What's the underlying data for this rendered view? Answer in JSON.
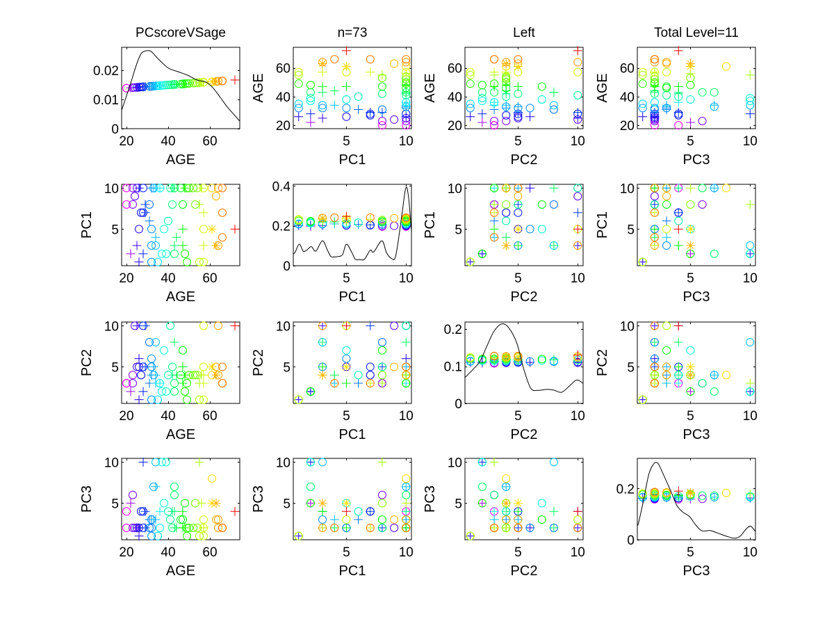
{
  "figure": {
    "background": "#ffffff",
    "axes_color": "#000000",
    "curve_color": "#000000"
  },
  "chart_data": {
    "type": "scatter",
    "subtype": "scatter-plot matrix (4x4) with kernel-density curves on the diagonal",
    "n": 73,
    "variables": [
      "AGE",
      "PC1",
      "PC2",
      "PC3"
    ],
    "titles": [
      "PCscoreVSage",
      "n=73",
      "Left",
      "Total Level=11"
    ],
    "axes": {
      "AGE": {
        "label": "AGE",
        "lim": [
          17.66,
          74.34
        ],
        "ticks": [
          20,
          40,
          60
        ],
        "tick_labels": [
          "20",
          "40",
          "60"
        ]
      },
      "PC1": {
        "label": "PC1",
        "lim": [
          0.55,
          10.45
        ],
        "ticks": [
          5,
          10
        ],
        "tick_labels": [
          "5",
          "10"
        ]
      },
      "PC2": {
        "label": "PC2",
        "lim": [
          0.55,
          10.45
        ],
        "ticks": [
          5,
          10
        ],
        "tick_labels": [
          "5",
          "10"
        ]
      },
      "PC3": {
        "label": "PC3",
        "lim": [
          0.55,
          10.45
        ],
        "ticks": [
          5,
          10
        ],
        "tick_labels": [
          "5",
          "10"
        ]
      }
    },
    "grid": false,
    "legend": "none",
    "color_map": {
      "by": "AGE",
      "scheme": "hsv-reversed",
      "hue_at_min": 300,
      "hue_at_max": 0,
      "min": 20,
      "max": 72,
      "gamma": 0.8
    },
    "markers": {
      "o": "circle",
      "+": "plus",
      "*": "star"
    },
    "subject_fields": [
      "AGE",
      "PC1",
      "PC2",
      "PC3",
      "marker"
    ],
    "subjects": [
      [
        20,
        8,
        3,
        2,
        "o"
      ],
      [
        20,
        10,
        3,
        4,
        "o"
      ],
      [
        22,
        2,
        2,
        5,
        "+"
      ],
      [
        23,
        8,
        3,
        6,
        "o"
      ],
      [
        23,
        10,
        4,
        2,
        "o"
      ],
      [
        24,
        9,
        10,
        2,
        "o"
      ],
      [
        25,
        3,
        10,
        2,
        "+"
      ],
      [
        25,
        10,
        5,
        2,
        "o"
      ],
      [
        26,
        1,
        1,
        1,
        "+"
      ],
      [
        26,
        5,
        5,
        2,
        "o"
      ],
      [
        26,
        10,
        6,
        2,
        "+"
      ],
      [
        27,
        7,
        4,
        4,
        "o"
      ],
      [
        28,
        10,
        10,
        2,
        "o"
      ],
      [
        28,
        2,
        2,
        10,
        "+"
      ],
      [
        28,
        7,
        5,
        4,
        "o"
      ],
      [
        29,
        7,
        10,
        4,
        "+"
      ],
      [
        29,
        8,
        5,
        2,
        "+"
      ],
      [
        31,
        8,
        8,
        2,
        "o"
      ],
      [
        31,
        6,
        3,
        3,
        "+"
      ],
      [
        32,
        1,
        1,
        1,
        "o"
      ],
      [
        32,
        10,
        4,
        3,
        "+"
      ],
      [
        32,
        3,
        5,
        3,
        "o"
      ],
      [
        32,
        5,
        6,
        2,
        "o"
      ],
      [
        33,
        10,
        4,
        7,
        "o"
      ],
      [
        33,
        10,
        5,
        3,
        "+"
      ],
      [
        34,
        3,
        8,
        10,
        "o"
      ],
      [
        34,
        10,
        4,
        7,
        "+"
      ],
      [
        34,
        4,
        3,
        3,
        "+"
      ],
      [
        35,
        1,
        1,
        1,
        "o"
      ],
      [
        36,
        10,
        3,
        4,
        "+"
      ],
      [
        36,
        10,
        3,
        2,
        "o"
      ],
      [
        37,
        2,
        2,
        10,
        "o"
      ],
      [
        38,
        5,
        7,
        5,
        "o"
      ],
      [
        39,
        2,
        2,
        10,
        "o"
      ],
      [
        40,
        6,
        4,
        4,
        "o"
      ],
      [
        41,
        10,
        10,
        3,
        "o"
      ],
      [
        42,
        10,
        4,
        4,
        "+"
      ],
      [
        42,
        8,
        5,
        2,
        "o"
      ],
      [
        43,
        2,
        2,
        7,
        "o"
      ],
      [
        43,
        3,
        8,
        4,
        "+"
      ],
      [
        43,
        10,
        3,
        6,
        "o"
      ],
      [
        43,
        10,
        8,
        2,
        "+"
      ],
      [
        44,
        4,
        4,
        2,
        "+"
      ],
      [
        46,
        10,
        4,
        3,
        "o"
      ],
      [
        47,
        8,
        7,
        3,
        "o"
      ],
      [
        47,
        3,
        5,
        4,
        "+"
      ],
      [
        47,
        5,
        3,
        2,
        "+"
      ],
      [
        48,
        2,
        2,
        5,
        "o"
      ],
      [
        48,
        10,
        4,
        2,
        "+"
      ],
      [
        49,
        1,
        1,
        1,
        "o"
      ],
      [
        49,
        10,
        3,
        2,
        "o"
      ],
      [
        50,
        10,
        4,
        2,
        "o"
      ],
      [
        52,
        10,
        4,
        2,
        "o"
      ],
      [
        53,
        8,
        4,
        5,
        "o"
      ],
      [
        54,
        10,
        4,
        2,
        "o"
      ],
      [
        55,
        1,
        1,
        1,
        "o"
      ],
      [
        55,
        8,
        3,
        10,
        "+"
      ],
      [
        56,
        10,
        4,
        5,
        "+"
      ],
      [
        57,
        1,
        1,
        1,
        "o"
      ],
      [
        57,
        3,
        4,
        2,
        "+"
      ],
      [
        57,
        5,
        10,
        3,
        "o"
      ],
      [
        57,
        10,
        5,
        2,
        "o"
      ],
      [
        57,
        7,
        3,
        2,
        "+"
      ],
      [
        61,
        5,
        5,
        5,
        "*"
      ],
      [
        61,
        10,
        4,
        8,
        "o"
      ],
      [
        63,
        9,
        5,
        3,
        "o"
      ],
      [
        63,
        3,
        4,
        5,
        "*"
      ],
      [
        64,
        10,
        4,
        3,
        "o"
      ],
      [
        64,
        3,
        10,
        2,
        "o"
      ],
      [
        66,
        4,
        3,
        2,
        "o"
      ],
      [
        66,
        7,
        3,
        2,
        "o"
      ],
      [
        66,
        10,
        5,
        2,
        "o"
      ],
      [
        72,
        5,
        10,
        4,
        "+"
      ]
    ],
    "diagonals": [
      {
        "variable": "AGE",
        "ylim": [
          0,
          0.0279
        ],
        "yticks": [
          0,
          0.01,
          0.02
        ],
        "ytick_labels": [
          "0",
          "0.01",
          "0.02"
        ],
        "marker_y_range": [
          0.0139,
          0.0167
        ],
        "density": [
          [
            17.7,
            0.0064
          ],
          [
            21.6,
            0.0147
          ],
          [
            24.9,
            0.0222
          ],
          [
            27.1,
            0.0258
          ],
          [
            29.4,
            0.0267
          ],
          [
            31.6,
            0.0266
          ],
          [
            33.8,
            0.025
          ],
          [
            37.1,
            0.0226
          ],
          [
            40.5,
            0.0206
          ],
          [
            44.9,
            0.0195
          ],
          [
            49.4,
            0.0183
          ],
          [
            53.8,
            0.0167
          ],
          [
            58.3,
            0.0159
          ],
          [
            61.6,
            0.0139
          ],
          [
            65.0,
            0.0107
          ],
          [
            68.3,
            0.0075
          ],
          [
            71.6,
            0.0048
          ],
          [
            74.3,
            0.0026
          ]
        ]
      },
      {
        "variable": "PC1",
        "ylim": [
          0,
          0.408
        ],
        "yticks": [
          0,
          0.2,
          0.4
        ],
        "ytick_labels": [
          "0",
          "0.2",
          "0.4"
        ],
        "marker_y_range": [
          0.196,
          0.247
        ],
        "density": [
          [
            0.55,
            0.058
          ],
          [
            0.7,
            0.067
          ],
          [
            1.05,
            0.108
          ],
          [
            1.38,
            0.073
          ],
          [
            1.67,
            0.078
          ],
          [
            2.06,
            0.096
          ],
          [
            2.44,
            0.073
          ],
          [
            2.99,
            0.125
          ],
          [
            3.41,
            0.078
          ],
          [
            3.7,
            0.046
          ],
          [
            4.0,
            0.044
          ],
          [
            4.28,
            0.046
          ],
          [
            4.67,
            0.055
          ],
          [
            5.0,
            0.108
          ],
          [
            5.45,
            0.067
          ],
          [
            5.74,
            0.032
          ],
          [
            6.1,
            0.031
          ],
          [
            6.51,
            0.032
          ],
          [
            7.0,
            0.078
          ],
          [
            7.29,
            0.069
          ],
          [
            7.97,
            0.125
          ],
          [
            8.35,
            0.067
          ],
          [
            8.74,
            0.038
          ],
          [
            9.13,
            0.049
          ],
          [
            9.62,
            0.242
          ],
          [
            9.97,
            0.388
          ],
          [
            10.2,
            0.347
          ],
          [
            10.45,
            0.172
          ]
        ]
      },
      {
        "variable": "PC2",
        "ylim": [
          0,
          0.219
        ],
        "yticks": [
          0,
          0.1,
          0.2
        ],
        "ytick_labels": [
          "0",
          "0.1",
          "0.2"
        ],
        "marker_y_range": [
          0.108,
          0.13
        ],
        "density": [
          [
            0.55,
            0.07
          ],
          [
            0.66,
            0.073
          ],
          [
            1.24,
            0.092
          ],
          [
            1.82,
            0.114
          ],
          [
            2.4,
            0.155
          ],
          [
            2.98,
            0.194
          ],
          [
            3.65,
            0.214
          ],
          [
            4.23,
            0.203
          ],
          [
            4.9,
            0.162
          ],
          [
            5.48,
            0.092
          ],
          [
            6.06,
            0.041
          ],
          [
            6.64,
            0.035
          ],
          [
            7.41,
            0.038
          ],
          [
            7.98,
            0.036
          ],
          [
            8.65,
            0.03
          ],
          [
            9.34,
            0.048
          ],
          [
            9.91,
            0.063
          ],
          [
            10.45,
            0.054
          ]
        ]
      },
      {
        "variable": "PC3",
        "ylim": [
          0,
          0.318
        ],
        "yticks": [
          0,
          0.2
        ],
        "ytick_labels": [
          "0",
          "0.2"
        ],
        "marker_y_range": [
          0.158,
          0.19
        ],
        "density": [
          [
            0.55,
            0.058
          ],
          [
            0.64,
            0.064
          ],
          [
            1.03,
            0.145
          ],
          [
            1.51,
            0.255
          ],
          [
            1.9,
            0.295
          ],
          [
            2.15,
            0.302
          ],
          [
            2.38,
            0.291
          ],
          [
            2.87,
            0.241
          ],
          [
            3.35,
            0.191
          ],
          [
            3.84,
            0.136
          ],
          [
            4.33,
            0.109
          ],
          [
            4.91,
            0.091
          ],
          [
            5.49,
            0.055
          ],
          [
            5.97,
            0.035
          ],
          [
            6.65,
            0.036
          ],
          [
            7.23,
            0.027
          ],
          [
            8.01,
            0.014
          ],
          [
            8.69,
            0.006
          ],
          [
            9.17,
            0.014
          ],
          [
            9.65,
            0.041
          ],
          [
            10.04,
            0.053
          ],
          [
            10.45,
            0.032
          ]
        ]
      }
    ]
  }
}
